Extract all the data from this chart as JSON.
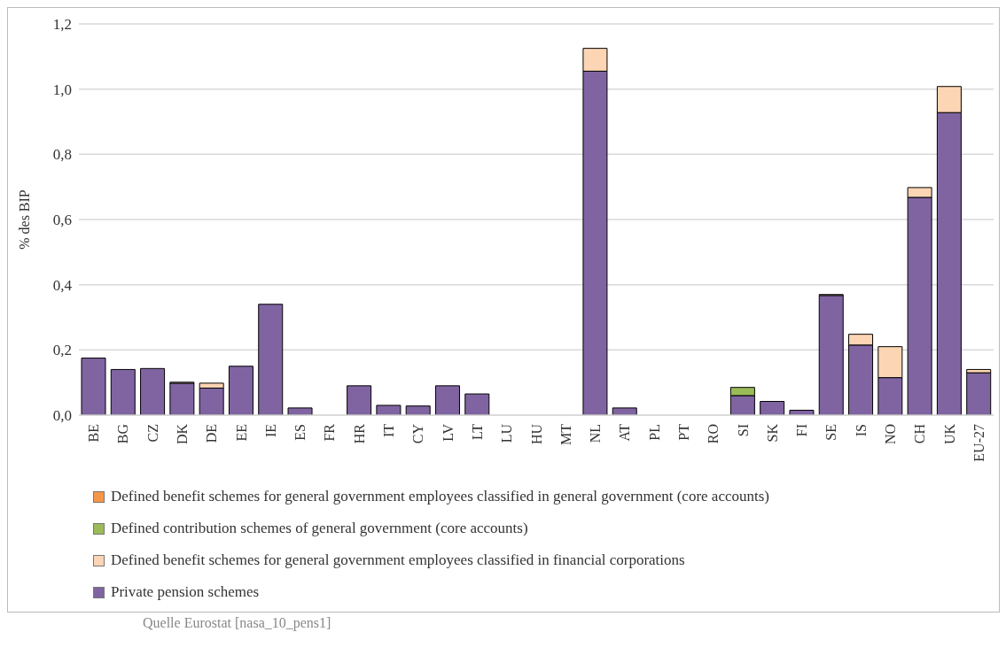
{
  "chart_data": {
    "type": "bar",
    "stacked": true,
    "ylabel": "% des BIP",
    "categories": [
      "BE",
      "BG",
      "CZ",
      "DK",
      "DE",
      "EE",
      "IE",
      "ES",
      "FR",
      "HR",
      "IT",
      "CY",
      "LV",
      "LT",
      "LU",
      "HU",
      "MT",
      "NL",
      "AT",
      "PL",
      "PT",
      "RO",
      "SI",
      "SK",
      "FI",
      "SE",
      "IS",
      "NO",
      "CH",
      "UK",
      "EU-27"
    ],
    "series": [
      {
        "name": "Private pension schemes",
        "color": "#8064a2",
        "values": [
          0.175,
          0.14,
          0.143,
          0.098,
          0.083,
          0.15,
          0.34,
          0.022,
          0,
          0.09,
          0.03,
          0.028,
          0.09,
          0.065,
          0,
          0,
          0,
          1.055,
          0.022,
          0,
          0,
          0,
          0.06,
          0.042,
          0.015,
          0.367,
          0.215,
          0.115,
          0.668,
          0.928,
          0.13
        ]
      },
      {
        "name": "Defined benefit schemes for general government employees classified in financial corporations",
        "color": "#fcd5b4",
        "values": [
          0,
          0,
          0,
          0.003,
          0.015,
          0,
          0,
          0,
          0,
          0,
          0,
          0,
          0,
          0,
          0,
          0,
          0,
          0.07,
          0,
          0,
          0,
          0,
          0,
          0,
          0,
          0.003,
          0.033,
          0.095,
          0.03,
          0.08,
          0.01
        ]
      },
      {
        "name": "Defined contribution schemes of general government (core accounts)",
        "color": "#9bbb59",
        "values": [
          0,
          0,
          0,
          0,
          0,
          0,
          0,
          0,
          0,
          0,
          0,
          0,
          0,
          0,
          0,
          0,
          0,
          0,
          0,
          0,
          0,
          0,
          0.025,
          0,
          0,
          0,
          0,
          0,
          0,
          0,
          0
        ]
      },
      {
        "name": "Defined benefit schemes for general government employees classified in general government (core accounts)",
        "color": "#f79646",
        "values": [
          0,
          0,
          0,
          0,
          0,
          0,
          0,
          0,
          0,
          0,
          0,
          0,
          0,
          0,
          0,
          0,
          0,
          0,
          0,
          0,
          0,
          0,
          0,
          0,
          0,
          0,
          0,
          0,
          0,
          0,
          0
        ]
      }
    ],
    "ylim": [
      0,
      1.2
    ],
    "yticks": [
      {
        "value": 0,
        "label": "0,0"
      },
      {
        "value": 0.2,
        "label": "0,2"
      },
      {
        "value": 0.4,
        "label": "0,4"
      },
      {
        "value": 0.6,
        "label": "0,6"
      },
      {
        "value": 0.8,
        "label": "0,8"
      },
      {
        "value": 1.0,
        "label": "1,0"
      },
      {
        "value": 1.2,
        "label": "1,2"
      }
    ],
    "grid": "y",
    "legend": "bottom",
    "annotations": [
      "Quelle Eurostat [nasa_10_pens1]"
    ]
  }
}
